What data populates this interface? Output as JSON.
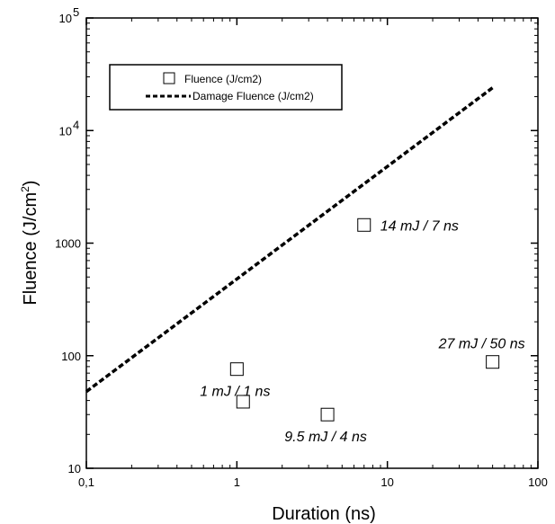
{
  "chart_data": {
    "type": "scatter",
    "title": "",
    "xlabel": "Duration (ns)",
    "ylabel_main": "Fluence (J/cm",
    "ylabel_sup": "2",
    "ylabel_tail": ")",
    "xscale": "log",
    "yscale": "log",
    "xlim": [
      0.1,
      100
    ],
    "ylim": [
      10,
      100000
    ],
    "x_ticks": [
      {
        "value": 0.1,
        "label": "0,1"
      },
      {
        "value": 1,
        "label": "1"
      },
      {
        "value": 10,
        "label": "10"
      },
      {
        "value": 100,
        "label": "100"
      }
    ],
    "y_ticks": [
      {
        "value": 10,
        "label": "10",
        "sup": ""
      },
      {
        "value": 100,
        "label": "100",
        "sup": ""
      },
      {
        "value": 1000,
        "label": "1000",
        "sup": ""
      },
      {
        "value": 10000,
        "label": "10",
        "sup": "4"
      },
      {
        "value": 100000,
        "label": "10",
        "sup": "5"
      }
    ],
    "grid": false,
    "legend_position": "top-left",
    "series": [
      {
        "name": "Fluence (J/cm2)",
        "kind": "scatter",
        "marker": "open-square",
        "points": [
          {
            "x": 1.0,
            "y": 76
          },
          {
            "x": 1.1,
            "y": 39
          },
          {
            "x": 4.0,
            "y": 30
          },
          {
            "x": 7.0,
            "y": 1450
          },
          {
            "x": 50.0,
            "y": 88
          }
        ]
      },
      {
        "name": "Damage Fluence (J/cm2)",
        "kind": "line",
        "style": "dashed",
        "points": [
          {
            "x": 0.1,
            "y": 48
          },
          {
            "x": 50,
            "y": 24000
          }
        ]
      }
    ],
    "annotations": [
      {
        "text": "1 mJ / 1 ns",
        "x": 1.0,
        "y": 76,
        "anchor": "below"
      },
      {
        "text": "9.5 mJ / 4 ns",
        "x": 4.0,
        "y": 30,
        "anchor": "below"
      },
      {
        "text": "14 mJ / 7 ns",
        "x": 7.0,
        "y": 1450,
        "anchor": "right"
      },
      {
        "text": "27 mJ / 50 ns",
        "x": 50.0,
        "y": 88,
        "anchor": "above-left"
      }
    ]
  }
}
